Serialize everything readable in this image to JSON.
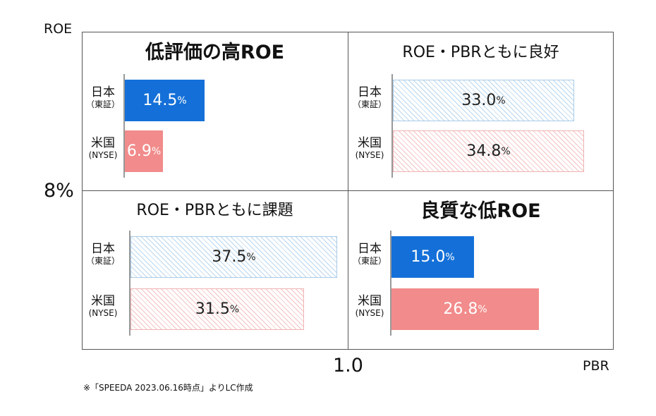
{
  "chart_data": {
    "type": "bar",
    "axes": {
      "y_label": "ROE",
      "x_label": "PBR",
      "y_threshold": "8%",
      "x_threshold": "1.0"
    },
    "categories": [
      {
        "main": "日本",
        "sub": "（東証）"
      },
      {
        "main": "米国",
        "sub": "(NYSE)"
      }
    ],
    "unit": "%",
    "quadrants": [
      {
        "title": "低評価の高ROE",
        "values": [
          14.5,
          6.9
        ],
        "labels": [
          "14.5",
          "6.9"
        ]
      },
      {
        "title": "ROE・PBRともに良好",
        "values": [
          33.0,
          34.8
        ],
        "labels": [
          "33.0",
          "34.8"
        ]
      },
      {
        "title": "ROE・PBRともに課題",
        "values": [
          37.5,
          31.5
        ],
        "labels": [
          "37.5",
          "31.5"
        ]
      },
      {
        "title": "良質な低ROE",
        "values": [
          15.0,
          26.8
        ],
        "labels": [
          "15.0",
          "26.8"
        ]
      }
    ],
    "colors": {
      "japan": "#1470d8",
      "us": "#f28b8b",
      "japan_hatch": "#b9d6ee",
      "us_hatch": "#f4c1c1"
    }
  },
  "footnote": "※「SPEEDA 2023.06.16時点」よりLC作成"
}
